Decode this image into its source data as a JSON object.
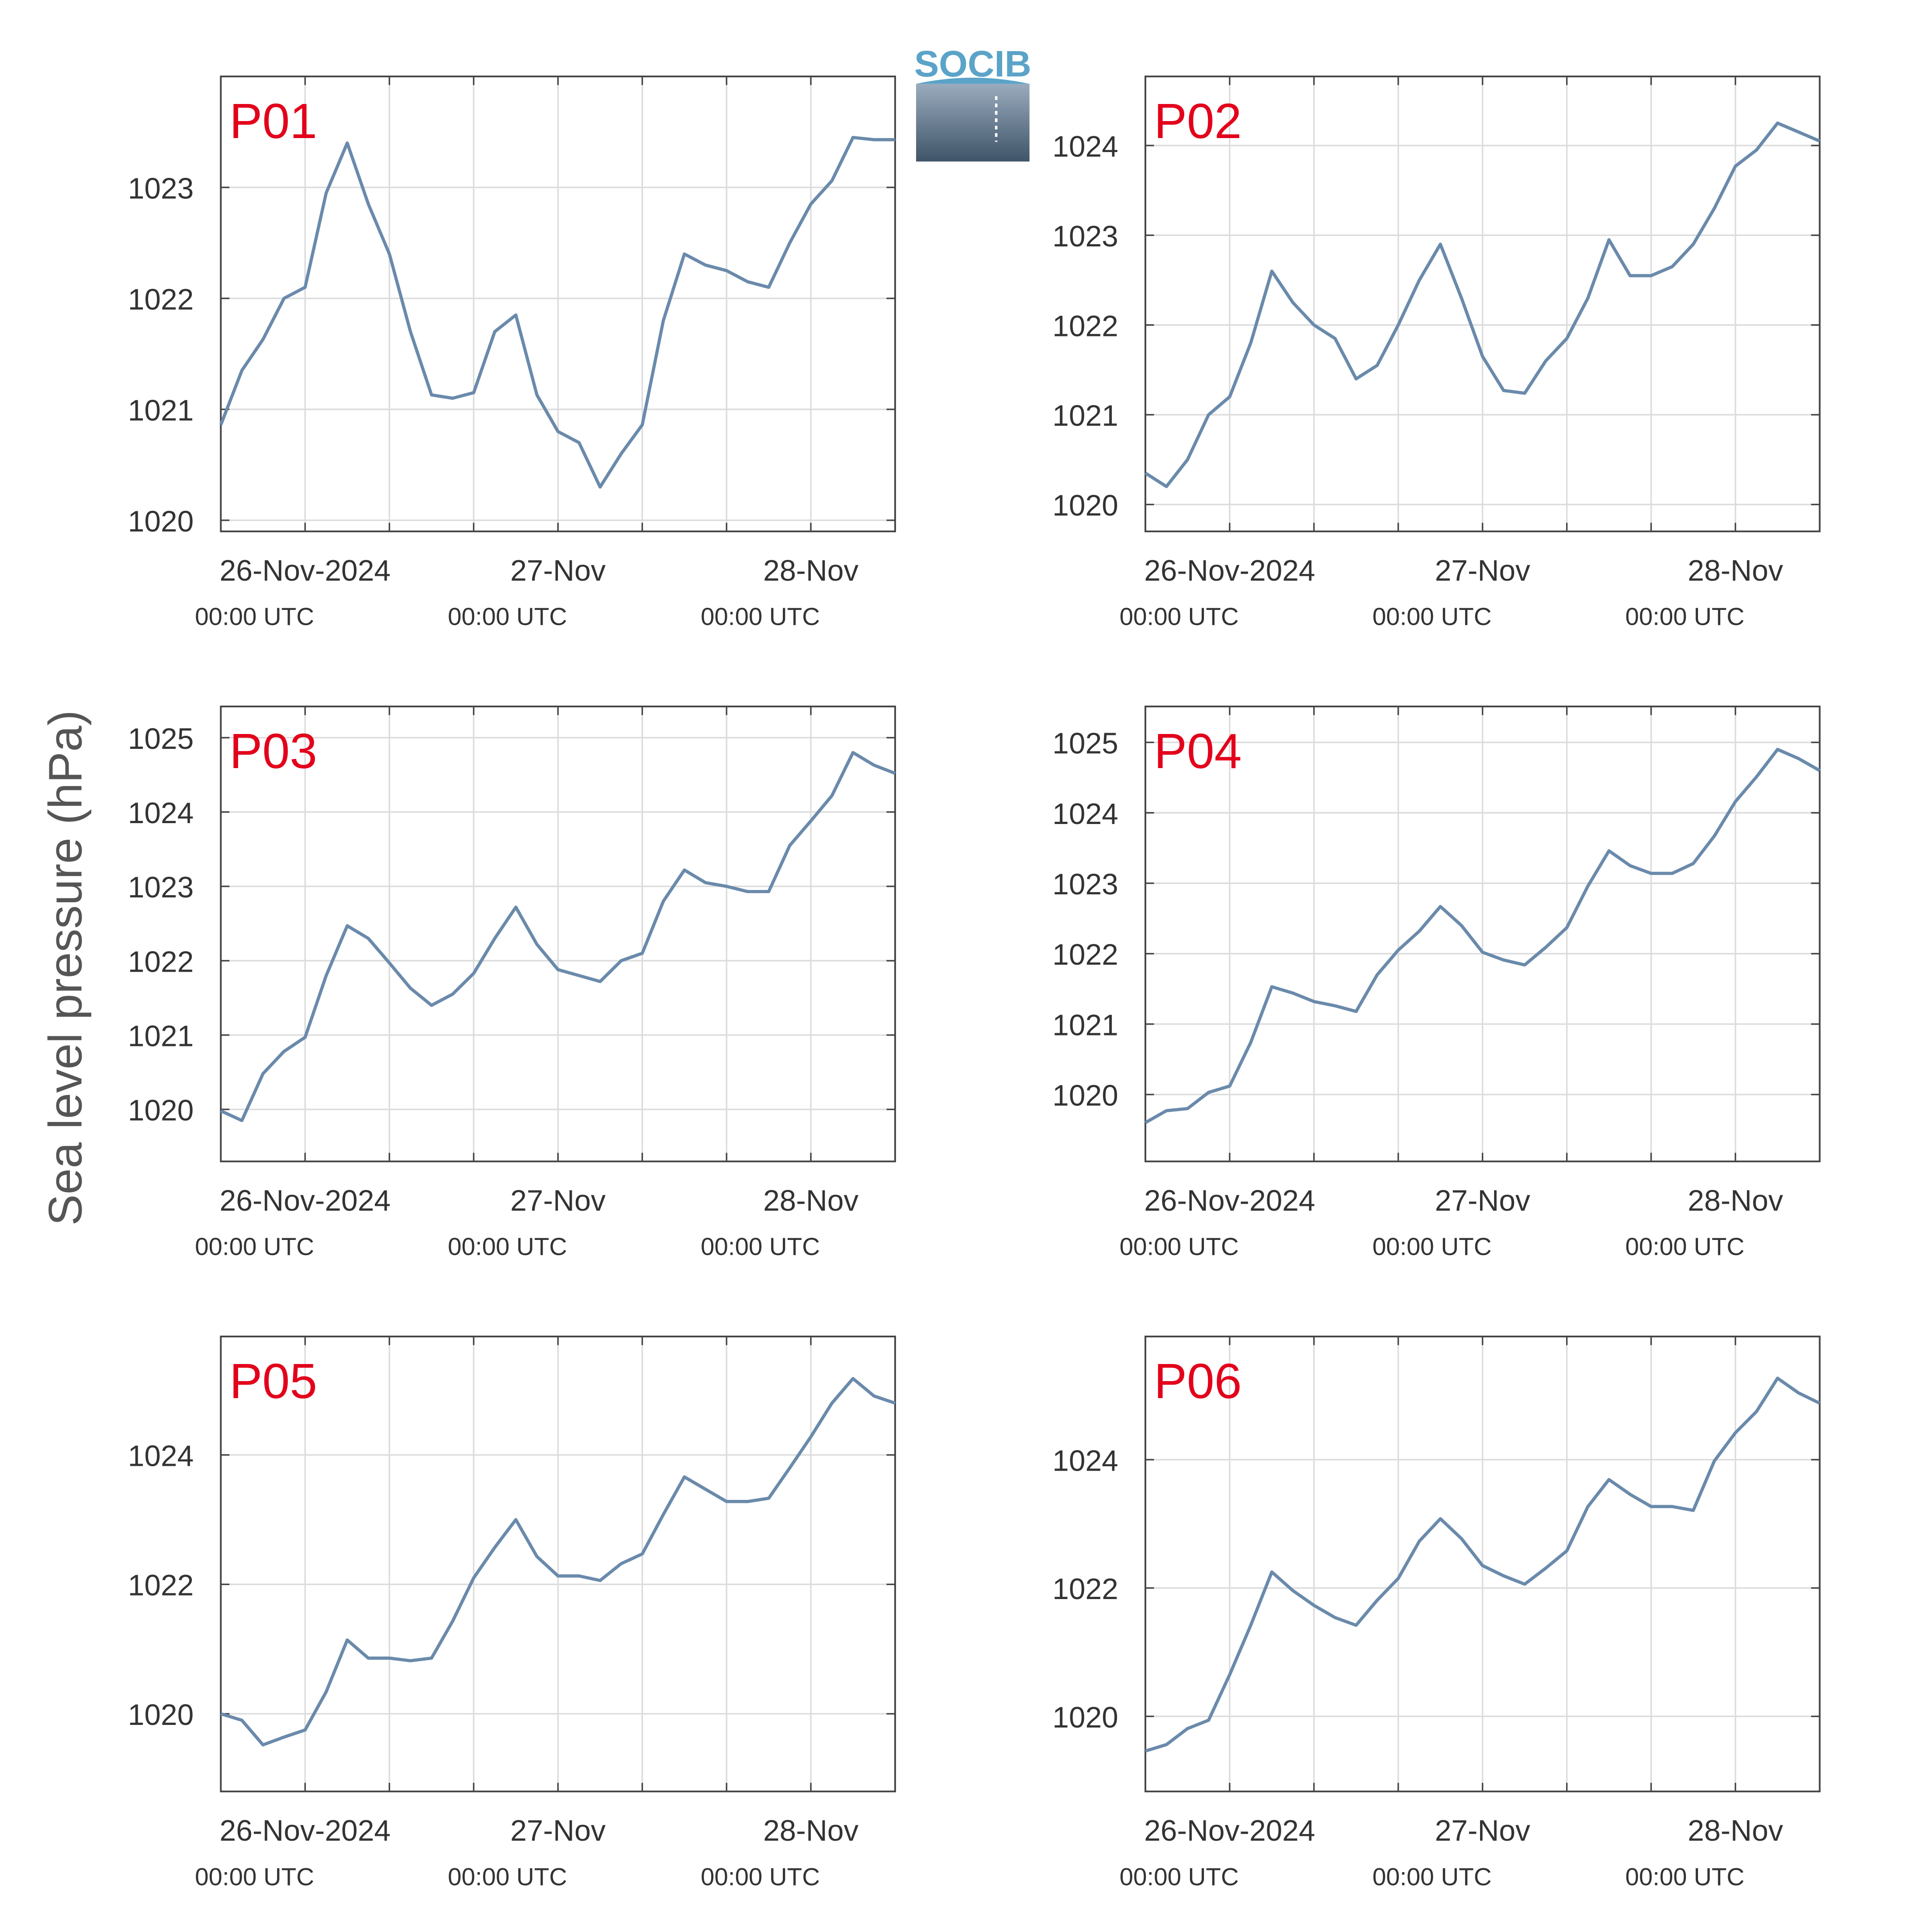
{
  "ylabel": "Sea level pressure (hPa)",
  "logo": "SOCIB",
  "chart_data": [
    {
      "type": "line",
      "title": "P01",
      "color": "#6a8aab",
      "grid": true,
      "x": [
        "2024-11-25T16:00",
        "2024-11-25T18:00",
        "2024-11-25T20:00",
        "2024-11-25T22:00",
        "2024-11-26T00:00",
        "2024-11-26T02:00",
        "2024-11-26T04:00",
        "2024-11-26T06:00",
        "2024-11-26T08:00",
        "2024-11-26T10:00",
        "2024-11-26T12:00",
        "2024-11-26T14:00",
        "2024-11-26T16:00",
        "2024-11-26T18:00",
        "2024-11-26T20:00",
        "2024-11-26T22:00",
        "2024-11-27T00:00",
        "2024-11-27T02:00",
        "2024-11-27T04:00",
        "2024-11-27T06:00",
        "2024-11-27T08:00",
        "2024-11-27T10:00",
        "2024-11-27T12:00",
        "2024-11-27T14:00",
        "2024-11-27T16:00",
        "2024-11-27T18:00",
        "2024-11-27T20:00",
        "2024-11-27T22:00",
        "2024-11-28T00:00",
        "2024-11-28T02:00",
        "2024-11-28T04:00",
        "2024-11-28T06:00",
        "2024-11-28T08:00"
      ],
      "values": [
        1020.86,
        1021.35,
        1021.63,
        1022.0,
        1022.1,
        1022.95,
        1023.4,
        1022.85,
        1022.4,
        1021.7,
        1021.13,
        1021.1,
        1021.15,
        1021.7,
        1021.85,
        1021.13,
        1020.8,
        1020.7,
        1020.3,
        1020.6,
        1020.86,
        1021.8,
        1022.4,
        1022.3,
        1022.25,
        1022.15,
        1022.1,
        1022.5,
        1022.85,
        1023.06,
        1023.45,
        1023.43,
        1023.43
      ],
      "xlim": [
        "2024-11-25T16:00",
        "2024-11-28T08:00"
      ],
      "xticks": [
        {
          "value": "2024-11-26T00:00",
          "label": "26-Nov-2024",
          "sublabel": "00:00 UTC"
        },
        {
          "value": "2024-11-27T00:00",
          "label": "27-Nov",
          "sublabel": "00:00 UTC"
        },
        {
          "value": "2024-11-28T00:00",
          "label": "28-Nov",
          "sublabel": "00:00 UTC"
        }
      ],
      "xminorticks": [
        "2024-11-26T08:00",
        "2024-11-26T16:00",
        "2024-11-27T08:00",
        "2024-11-27T16:00"
      ],
      "ylim": [
        1019.9,
        1024
      ],
      "yticks": [
        1020,
        1021,
        1022,
        1023
      ]
    },
    {
      "type": "line",
      "title": "P02",
      "color": "#6a8aab",
      "grid": true,
      "x": [
        "2024-11-25T16:00",
        "2024-11-25T18:00",
        "2024-11-25T20:00",
        "2024-11-25T22:00",
        "2024-11-26T00:00",
        "2024-11-26T02:00",
        "2024-11-26T04:00",
        "2024-11-26T06:00",
        "2024-11-26T08:00",
        "2024-11-26T10:00",
        "2024-11-26T12:00",
        "2024-11-26T14:00",
        "2024-11-26T16:00",
        "2024-11-26T18:00",
        "2024-11-26T20:00",
        "2024-11-26T22:00",
        "2024-11-27T00:00",
        "2024-11-27T02:00",
        "2024-11-27T04:00",
        "2024-11-27T06:00",
        "2024-11-27T08:00",
        "2024-11-27T10:00",
        "2024-11-27T12:00",
        "2024-11-27T14:00",
        "2024-11-27T16:00",
        "2024-11-27T18:00",
        "2024-11-27T20:00",
        "2024-11-27T22:00",
        "2024-11-28T00:00",
        "2024-11-28T02:00",
        "2024-11-28T04:00",
        "2024-11-28T06:00",
        "2024-11-28T08:00"
      ],
      "values": [
        1020.35,
        1020.2,
        1020.5,
        1021.0,
        1021.2,
        1021.8,
        1022.6,
        1022.25,
        1022.0,
        1021.85,
        1021.4,
        1021.55,
        1022.0,
        1022.5,
        1022.9,
        1022.3,
        1021.65,
        1021.27,
        1021.24,
        1021.6,
        1021.85,
        1022.3,
        1022.95,
        1022.55,
        1022.55,
        1022.65,
        1022.9,
        1023.3,
        1023.77,
        1023.95,
        1024.25,
        1024.15,
        1024.05
      ],
      "xlim": [
        "2024-11-25T16:00",
        "2024-11-28T08:00"
      ],
      "xticks": [
        {
          "value": "2024-11-26T00:00",
          "label": "26-Nov-2024",
          "sublabel": "00:00 UTC"
        },
        {
          "value": "2024-11-27T00:00",
          "label": "27-Nov",
          "sublabel": "00:00 UTC"
        },
        {
          "value": "2024-11-28T00:00",
          "label": "28-Nov",
          "sublabel": "00:00 UTC"
        }
      ],
      "xminorticks": [
        "2024-11-26T08:00",
        "2024-11-26T16:00",
        "2024-11-27T08:00",
        "2024-11-27T16:00"
      ],
      "ylim": [
        1019.7,
        1024.77
      ],
      "yticks": [
        1020,
        1021,
        1022,
        1023,
        1024
      ]
    },
    {
      "type": "line",
      "title": "P03",
      "color": "#6a8aab",
      "grid": true,
      "x": [
        "2024-11-25T16:00",
        "2024-11-25T18:00",
        "2024-11-25T20:00",
        "2024-11-25T22:00",
        "2024-11-26T00:00",
        "2024-11-26T02:00",
        "2024-11-26T04:00",
        "2024-11-26T06:00",
        "2024-11-26T08:00",
        "2024-11-26T10:00",
        "2024-11-26T12:00",
        "2024-11-26T14:00",
        "2024-11-26T16:00",
        "2024-11-26T18:00",
        "2024-11-26T20:00",
        "2024-11-26T22:00",
        "2024-11-27T00:00",
        "2024-11-27T02:00",
        "2024-11-27T04:00",
        "2024-11-27T06:00",
        "2024-11-27T08:00",
        "2024-11-27T10:00",
        "2024-11-27T12:00",
        "2024-11-27T14:00",
        "2024-11-27T16:00",
        "2024-11-27T18:00",
        "2024-11-27T20:00",
        "2024-11-27T22:00",
        "2024-11-28T00:00",
        "2024-11-28T02:00",
        "2024-11-28T04:00",
        "2024-11-28T06:00",
        "2024-11-28T08:00"
      ],
      "values": [
        1019.98,
        1019.85,
        1020.48,
        1020.78,
        1020.97,
        1021.8,
        1022.47,
        1022.3,
        1021.97,
        1021.63,
        1021.4,
        1021.55,
        1021.83,
        1022.3,
        1022.72,
        1022.22,
        1021.88,
        1021.8,
        1021.72,
        1022.0,
        1022.1,
        1022.8,
        1023.22,
        1023.05,
        1023.0,
        1022.93,
        1022.93,
        1023.55,
        1023.88,
        1024.22,
        1024.8,
        1024.63,
        1024.52
      ],
      "xlim": [
        "2024-11-25T16:00",
        "2024-11-28T08:00"
      ],
      "xticks": [
        {
          "value": "2024-11-26T00:00",
          "label": "26-Nov-2024",
          "sublabel": "00:00 UTC"
        },
        {
          "value": "2024-11-27T00:00",
          "label": "27-Nov",
          "sublabel": "00:00 UTC"
        },
        {
          "value": "2024-11-28T00:00",
          "label": "28-Nov",
          "sublabel": "00:00 UTC"
        }
      ],
      "xminorticks": [
        "2024-11-26T08:00",
        "2024-11-26T16:00",
        "2024-11-27T08:00",
        "2024-11-27T16:00"
      ],
      "ylim": [
        1019.3,
        1025.42
      ],
      "yticks": [
        1020,
        1021,
        1022,
        1023,
        1024,
        1025
      ]
    },
    {
      "type": "line",
      "title": "P04",
      "color": "#6a8aab",
      "grid": true,
      "x": [
        "2024-11-25T16:00",
        "2024-11-25T18:00",
        "2024-11-25T20:00",
        "2024-11-25T22:00",
        "2024-11-26T00:00",
        "2024-11-26T02:00",
        "2024-11-26T04:00",
        "2024-11-26T06:00",
        "2024-11-26T08:00",
        "2024-11-26T10:00",
        "2024-11-26T12:00",
        "2024-11-26T14:00",
        "2024-11-26T16:00",
        "2024-11-26T18:00",
        "2024-11-26T20:00",
        "2024-11-26T22:00",
        "2024-11-27T00:00",
        "2024-11-27T02:00",
        "2024-11-27T04:00",
        "2024-11-27T06:00",
        "2024-11-27T08:00",
        "2024-11-27T10:00",
        "2024-11-27T12:00",
        "2024-11-27T14:00",
        "2024-11-27T16:00",
        "2024-11-27T18:00",
        "2024-11-27T20:00",
        "2024-11-27T22:00",
        "2024-11-28T00:00",
        "2024-11-28T02:00",
        "2024-11-28T04:00",
        "2024-11-28T06:00",
        "2024-11-28T08:00"
      ],
      "values": [
        1019.6,
        1019.77,
        1019.8,
        1020.03,
        1020.12,
        1020.74,
        1021.53,
        1021.44,
        1021.32,
        1021.26,
        1021.18,
        1021.7,
        1022.05,
        1022.32,
        1022.67,
        1022.4,
        1022.02,
        1021.91,
        1021.84,
        1022.09,
        1022.37,
        1022.96,
        1023.46,
        1023.25,
        1023.14,
        1023.14,
        1023.28,
        1023.67,
        1024.16,
        1024.51,
        1024.9,
        1024.77,
        1024.6
      ],
      "xlim": [
        "2024-11-25T16:00",
        "2024-11-28T08:00"
      ],
      "xticks": [
        {
          "value": "2024-11-26T00:00",
          "label": "26-Nov-2024",
          "sublabel": "00:00 UTC"
        },
        {
          "value": "2024-11-27T00:00",
          "label": "27-Nov",
          "sublabel": "00:00 UTC"
        },
        {
          "value": "2024-11-28T00:00",
          "label": "28-Nov",
          "sublabel": "00:00 UTC"
        }
      ],
      "xminorticks": [
        "2024-11-26T08:00",
        "2024-11-26T16:00",
        "2024-11-27T08:00",
        "2024-11-27T16:00"
      ],
      "ylim": [
        1019.05,
        1025.51
      ],
      "yticks": [
        1020,
        1021,
        1022,
        1023,
        1024,
        1025
      ]
    },
    {
      "type": "line",
      "title": "P05",
      "color": "#6a8aab",
      "grid": true,
      "x": [
        "2024-11-25T16:00",
        "2024-11-25T18:00",
        "2024-11-25T20:00",
        "2024-11-25T22:00",
        "2024-11-26T00:00",
        "2024-11-26T02:00",
        "2024-11-26T04:00",
        "2024-11-26T06:00",
        "2024-11-26T08:00",
        "2024-11-26T10:00",
        "2024-11-26T12:00",
        "2024-11-26T14:00",
        "2024-11-26T16:00",
        "2024-11-26T18:00",
        "2024-11-26T20:00",
        "2024-11-26T22:00",
        "2024-11-27T00:00",
        "2024-11-27T02:00",
        "2024-11-27T04:00",
        "2024-11-27T06:00",
        "2024-11-27T08:00",
        "2024-11-27T10:00",
        "2024-11-27T12:00",
        "2024-11-27T14:00",
        "2024-11-27T16:00",
        "2024-11-27T18:00",
        "2024-11-27T20:00",
        "2024-11-27T22:00",
        "2024-11-28T00:00",
        "2024-11-28T02:00",
        "2024-11-28T04:00",
        "2024-11-28T06:00",
        "2024-11-28T08:00"
      ],
      "values": [
        1020.0,
        1019.9,
        1019.52,
        1019.64,
        1019.75,
        1020.34,
        1021.14,
        1020.86,
        1020.86,
        1020.82,
        1020.86,
        1021.43,
        1022.1,
        1022.57,
        1023.0,
        1022.43,
        1022.13,
        1022.13,
        1022.06,
        1022.32,
        1022.47,
        1023.08,
        1023.66,
        1023.47,
        1023.28,
        1023.28,
        1023.33,
        1023.8,
        1024.28,
        1024.8,
        1025.18,
        1024.91,
        1024.8
      ],
      "xlim": [
        "2024-11-25T16:00",
        "2024-11-28T08:00"
      ],
      "xticks": [
        {
          "value": "2024-11-26T00:00",
          "label": "26-Nov-2024",
          "sublabel": "00:00 UTC"
        },
        {
          "value": "2024-11-27T00:00",
          "label": "27-Nov",
          "sublabel": "00:00 UTC"
        },
        {
          "value": "2024-11-28T00:00",
          "label": "28-Nov",
          "sublabel": "00:00 UTC"
        }
      ],
      "xminorticks": [
        "2024-11-26T08:00",
        "2024-11-26T16:00",
        "2024-11-27T08:00",
        "2024-11-27T16:00"
      ],
      "ylim": [
        1018.8,
        1025.83
      ],
      "yticks": [
        1020,
        1022,
        1024
      ]
    },
    {
      "type": "line",
      "title": "P06",
      "color": "#6a8aab",
      "grid": true,
      "x": [
        "2024-11-25T16:00",
        "2024-11-25T18:00",
        "2024-11-25T20:00",
        "2024-11-25T22:00",
        "2024-11-26T00:00",
        "2024-11-26T02:00",
        "2024-11-26T04:00",
        "2024-11-26T06:00",
        "2024-11-26T08:00",
        "2024-11-26T10:00",
        "2024-11-26T12:00",
        "2024-11-26T14:00",
        "2024-11-26T16:00",
        "2024-11-26T18:00",
        "2024-11-26T20:00",
        "2024-11-26T22:00",
        "2024-11-27T00:00",
        "2024-11-27T02:00",
        "2024-11-27T04:00",
        "2024-11-27T06:00",
        "2024-11-27T08:00",
        "2024-11-27T10:00",
        "2024-11-27T12:00",
        "2024-11-27T14:00",
        "2024-11-27T16:00",
        "2024-11-27T18:00",
        "2024-11-27T20:00",
        "2024-11-27T22:00",
        "2024-11-28T00:00",
        "2024-11-28T02:00",
        "2024-11-28T04:00",
        "2024-11-28T06:00",
        "2024-11-28T08:00"
      ],
      "values": [
        1019.46,
        1019.56,
        1019.81,
        1019.94,
        1020.65,
        1021.42,
        1022.25,
        1021.96,
        1021.73,
        1021.54,
        1021.42,
        1021.81,
        1022.15,
        1022.73,
        1023.08,
        1022.77,
        1022.35,
        1022.19,
        1022.06,
        1022.31,
        1022.58,
        1023.27,
        1023.69,
        1023.46,
        1023.27,
        1023.27,
        1023.21,
        1023.98,
        1024.42,
        1024.75,
        1025.27,
        1025.04,
        1024.88
      ],
      "xlim": [
        "2024-11-25T16:00",
        "2024-11-28T08:00"
      ],
      "xticks": [
        {
          "value": "2024-11-26T00:00",
          "label": "26-Nov-2024",
          "sublabel": "00:00 UTC"
        },
        {
          "value": "2024-11-27T00:00",
          "label": "27-Nov",
          "sublabel": "00:00 UTC"
        },
        {
          "value": "2024-11-28T00:00",
          "label": "28-Nov",
          "sublabel": "00:00 UTC"
        }
      ],
      "xminorticks": [
        "2024-11-26T08:00",
        "2024-11-26T16:00",
        "2024-11-27T08:00",
        "2024-11-27T16:00"
      ],
      "ylim": [
        1018.83,
        1025.92
      ],
      "yticks": [
        1020,
        1022,
        1024
      ]
    }
  ]
}
